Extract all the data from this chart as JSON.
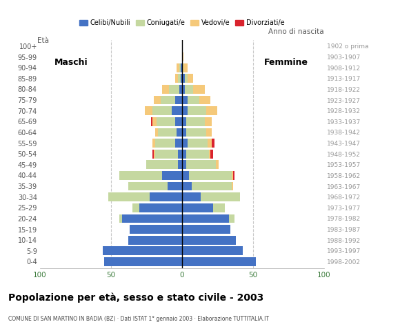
{
  "title": "Popolazione per età, sesso e stato civile - 2003",
  "subtitle": "COMUNE DI SAN MARTINO IN BADIA (BZ) · Dati ISTAT 1° gennaio 2003 · Elaborazione TUTTITALIA.IT",
  "ylabel_left": "Età",
  "ylabel_right": "Anno di nascita",
  "age_groups": [
    "100+",
    "95-99",
    "90-94",
    "85-89",
    "80-84",
    "75-79",
    "70-74",
    "65-69",
    "60-64",
    "55-59",
    "50-54",
    "45-49",
    "40-44",
    "35-39",
    "30-34",
    "25-29",
    "20-24",
    "15-19",
    "10-14",
    "5-9",
    "0-4"
  ],
  "birth_years": [
    "1902 o prima",
    "1903-1907",
    "1908-1912",
    "1913-1917",
    "1918-1922",
    "1923-1927",
    "1928-1932",
    "1933-1937",
    "1938-1942",
    "1943-1947",
    "1948-1952",
    "1953-1957",
    "1958-1962",
    "1963-1967",
    "1968-1972",
    "1973-1977",
    "1978-1982",
    "1983-1987",
    "1988-1992",
    "1993-1997",
    "1998-2002"
  ],
  "colors": {
    "celibi": "#4472C4",
    "coniugati": "#c5d8a0",
    "vedovi": "#f5c97a",
    "divorziati": "#d9232d"
  },
  "legend_labels": [
    "Celibi/Nubili",
    "Coniugati/e",
    "Vedovi/e",
    "Divorziati/e"
  ],
  "maschi_celibi": [
    0,
    0,
    1,
    1,
    2,
    5,
    7,
    5,
    4,
    5,
    3,
    3,
    14,
    10,
    23,
    30,
    42,
    37,
    38,
    56,
    55
  ],
  "maschi_coniugati": [
    0,
    0,
    1,
    2,
    7,
    10,
    14,
    13,
    13,
    14,
    16,
    22,
    30,
    28,
    29,
    5,
    2,
    0,
    0,
    0,
    0
  ],
  "maschi_vedovi": [
    0,
    0,
    2,
    2,
    5,
    5,
    5,
    3,
    2,
    2,
    1,
    0,
    0,
    0,
    0,
    0,
    0,
    0,
    0,
    0,
    0
  ],
  "maschi_divorziati": [
    0,
    0,
    0,
    0,
    0,
    0,
    0,
    1,
    0,
    0,
    1,
    0,
    0,
    0,
    0,
    0,
    0,
    0,
    0,
    0,
    0
  ],
  "femmine_celibi": [
    0,
    0,
    0,
    2,
    2,
    4,
    4,
    3,
    3,
    4,
    3,
    3,
    5,
    7,
    13,
    22,
    33,
    34,
    38,
    43,
    52
  ],
  "femmine_coniugati": [
    0,
    0,
    1,
    2,
    6,
    8,
    13,
    13,
    14,
    14,
    16,
    21,
    30,
    28,
    28,
    8,
    4,
    0,
    0,
    0,
    0
  ],
  "femmine_vedovi": [
    0,
    1,
    3,
    4,
    8,
    8,
    8,
    5,
    4,
    3,
    1,
    2,
    1,
    1,
    0,
    0,
    0,
    0,
    0,
    0,
    0
  ],
  "femmine_divorziati": [
    0,
    0,
    0,
    0,
    0,
    0,
    0,
    0,
    0,
    2,
    2,
    0,
    1,
    0,
    0,
    0,
    0,
    0,
    0,
    0,
    0
  ],
  "xlim": 100,
  "maschi_label": "Maschi",
  "femmine_label": "Femmine",
  "bg_color": "#ffffff",
  "grid_color": "#c8c8c8",
  "bar_height": 0.82,
  "label_color": "#555555",
  "axis_tick_color": "#3a7a3a"
}
